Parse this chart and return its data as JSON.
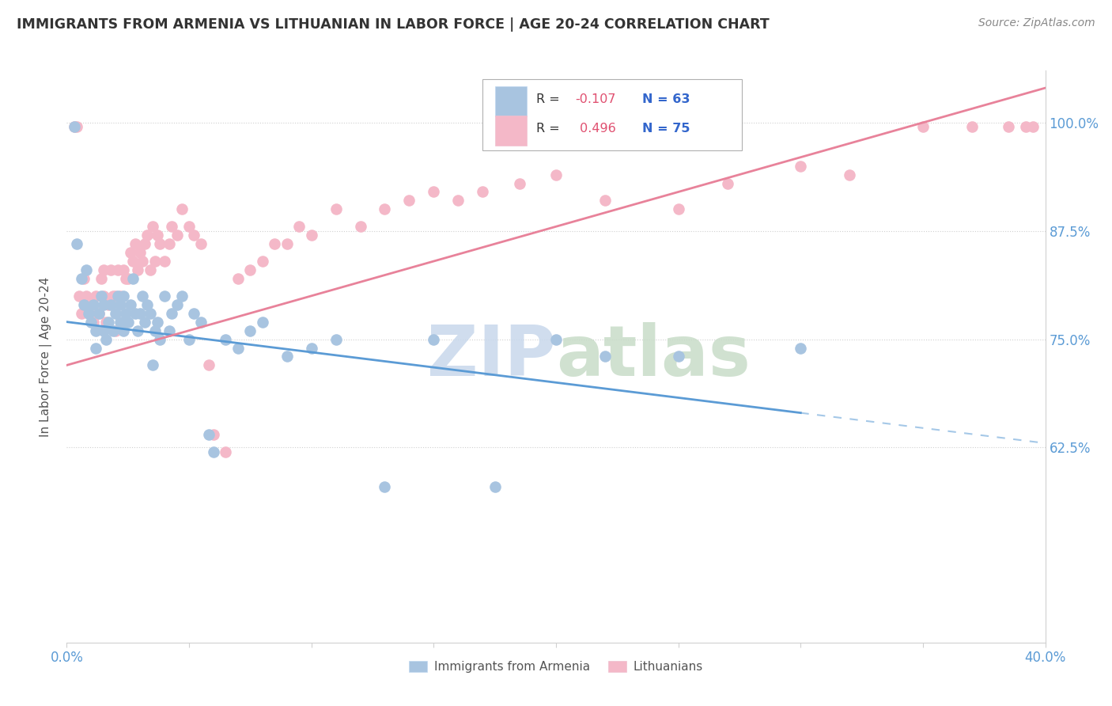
{
  "title": "IMMIGRANTS FROM ARMENIA VS LITHUANIAN IN LABOR FORCE | AGE 20-24 CORRELATION CHART",
  "source": "Source: ZipAtlas.com",
  "ylabel": "In Labor Force | Age 20-24",
  "xlim": [
    0.0,
    0.4
  ],
  "ylim": [
    0.4,
    1.06
  ],
  "yticks": [
    0.625,
    0.75,
    0.875,
    1.0
  ],
  "ytick_labels": [
    "62.5%",
    "75.0%",
    "87.5%",
    "100.0%"
  ],
  "armenia_color": "#a8c4e0",
  "armenia_edge_color": "#7aaed6",
  "lithuania_color": "#f4b8c8",
  "lithuania_edge_color": "#e87a9a",
  "armenia_R": -0.107,
  "armenia_N": 63,
  "lithuania_R": 0.496,
  "lithuania_N": 75,
  "armenia_line_color": "#5b9bd5",
  "armenia_line_color_dash": "#5b9bd5",
  "lithuania_line_color": "#e8829a",
  "arm_scatter_x": [
    0.003,
    0.004,
    0.006,
    0.007,
    0.008,
    0.009,
    0.01,
    0.011,
    0.012,
    0.012,
    0.013,
    0.014,
    0.015,
    0.015,
    0.016,
    0.017,
    0.018,
    0.019,
    0.02,
    0.021,
    0.022,
    0.022,
    0.023,
    0.023,
    0.024,
    0.025,
    0.026,
    0.027,
    0.028,
    0.029,
    0.03,
    0.031,
    0.032,
    0.033,
    0.034,
    0.035,
    0.036,
    0.037,
    0.038,
    0.04,
    0.042,
    0.043,
    0.045,
    0.047,
    0.05,
    0.052,
    0.055,
    0.058,
    0.06,
    0.065,
    0.07,
    0.075,
    0.08,
    0.09,
    0.1,
    0.11,
    0.13,
    0.15,
    0.175,
    0.2,
    0.22,
    0.25,
    0.3
  ],
  "arm_scatter_y": [
    0.995,
    0.86,
    0.82,
    0.79,
    0.83,
    0.78,
    0.77,
    0.79,
    0.74,
    0.76,
    0.78,
    0.8,
    0.76,
    0.79,
    0.75,
    0.77,
    0.79,
    0.76,
    0.78,
    0.8,
    0.79,
    0.77,
    0.8,
    0.76,
    0.78,
    0.77,
    0.79,
    0.82,
    0.78,
    0.76,
    0.78,
    0.8,
    0.77,
    0.79,
    0.78,
    0.72,
    0.76,
    0.77,
    0.75,
    0.8,
    0.76,
    0.78,
    0.79,
    0.8,
    0.75,
    0.78,
    0.77,
    0.64,
    0.62,
    0.75,
    0.74,
    0.76,
    0.77,
    0.73,
    0.74,
    0.75,
    0.58,
    0.75,
    0.58,
    0.75,
    0.73,
    0.73,
    0.74
  ],
  "lit_scatter_x": [
    0.003,
    0.004,
    0.005,
    0.006,
    0.007,
    0.008,
    0.009,
    0.01,
    0.011,
    0.012,
    0.013,
    0.014,
    0.015,
    0.015,
    0.016,
    0.017,
    0.018,
    0.019,
    0.02,
    0.02,
    0.021,
    0.022,
    0.023,
    0.024,
    0.025,
    0.026,
    0.027,
    0.028,
    0.029,
    0.03,
    0.031,
    0.032,
    0.033,
    0.034,
    0.035,
    0.036,
    0.037,
    0.038,
    0.04,
    0.042,
    0.043,
    0.045,
    0.047,
    0.05,
    0.052,
    0.055,
    0.058,
    0.06,
    0.065,
    0.07,
    0.075,
    0.08,
    0.085,
    0.09,
    0.095,
    0.1,
    0.11,
    0.12,
    0.13,
    0.14,
    0.15,
    0.16,
    0.17,
    0.185,
    0.2,
    0.22,
    0.25,
    0.27,
    0.3,
    0.32,
    0.35,
    0.37,
    0.385,
    0.392,
    0.395
  ],
  "lit_scatter_y": [
    0.995,
    0.995,
    0.8,
    0.78,
    0.82,
    0.8,
    0.78,
    0.79,
    0.77,
    0.8,
    0.78,
    0.82,
    0.8,
    0.83,
    0.77,
    0.79,
    0.83,
    0.8,
    0.8,
    0.76,
    0.83,
    0.8,
    0.83,
    0.82,
    0.82,
    0.85,
    0.84,
    0.86,
    0.83,
    0.85,
    0.84,
    0.86,
    0.87,
    0.83,
    0.88,
    0.84,
    0.87,
    0.86,
    0.84,
    0.86,
    0.88,
    0.87,
    0.9,
    0.88,
    0.87,
    0.86,
    0.72,
    0.64,
    0.62,
    0.82,
    0.83,
    0.84,
    0.86,
    0.86,
    0.88,
    0.87,
    0.9,
    0.88,
    0.9,
    0.91,
    0.92,
    0.91,
    0.92,
    0.93,
    0.94,
    0.91,
    0.9,
    0.93,
    0.95,
    0.94,
    0.995,
    0.995,
    0.995,
    0.995,
    0.995
  ]
}
